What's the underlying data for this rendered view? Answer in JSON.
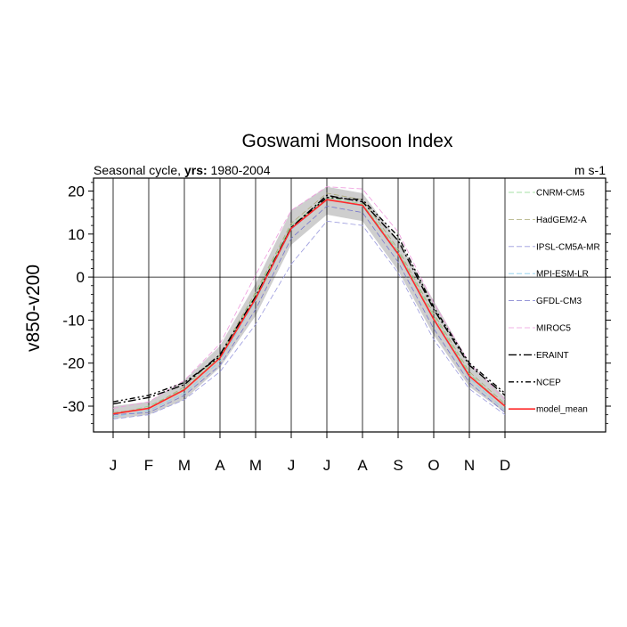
{
  "chart_data": {
    "type": "line",
    "title": "Goswami Monsoon Index",
    "subtitle_prefix": "Seasonal cycle, ",
    "subtitle_bold": "yrs:",
    "subtitle_years": " 1980-2004",
    "units": "m s-1",
    "ylabel": "v850-v200",
    "xlabel": "",
    "categories": [
      "J",
      "F",
      "M",
      "A",
      "M",
      "J",
      "J",
      "A",
      "S",
      "O",
      "N",
      "D"
    ],
    "ylim": [
      -36,
      23
    ],
    "yticks": [
      20,
      10,
      0,
      -10,
      -20,
      -30
    ],
    "ytick_labels": [
      "20",
      "10",
      "0",
      "-10",
      "-20",
      "-30"
    ],
    "grid": "vertical lines at each month",
    "legend_placement": "right inside plot",
    "shaded_band": {
      "lower": [
        -33.0,
        -32.0,
        -28.5,
        -21.0,
        -9.0,
        7.5,
        14.5,
        13.0,
        1.5,
        -13.5,
        -25.5,
        -31.5
      ],
      "upper": [
        -30.0,
        -29.0,
        -24.0,
        -16.0,
        -1.5,
        15.5,
        21.0,
        19.5,
        8.5,
        -5.5,
        -20.0,
        -28.0
      ]
    },
    "series": [
      {
        "name": "CNRM-CM5",
        "color": "#88d888",
        "dash": "6 3",
        "width": 0.8,
        "values": [
          -32.0,
          -30.0,
          -26.0,
          -18.5,
          -4.0,
          12.0,
          18.5,
          17.0,
          6.0,
          -9.0,
          -22.5,
          -30.0
        ]
      },
      {
        "name": "HadGEM2-A",
        "color": "#aaaa77",
        "dash": "6 3",
        "width": 0.8,
        "values": [
          -31.5,
          -30.5,
          -25.5,
          -18.0,
          -3.5,
          12.5,
          19.5,
          18.0,
          6.5,
          -8.5,
          -22.0,
          -29.5
        ]
      },
      {
        "name": "IPSL-CM5A-MR",
        "color": "#9999dd",
        "dash": "6 3",
        "width": 0.8,
        "values": [
          -33.0,
          -32.0,
          -28.5,
          -22.0,
          -11.0,
          3.0,
          13.0,
          12.0,
          1.0,
          -14.5,
          -26.0,
          -32.0
        ]
      },
      {
        "name": "MPI-ESM-LR",
        "color": "#88ccee",
        "dash": "6 3",
        "width": 0.8,
        "values": [
          -32.5,
          -31.0,
          -27.0,
          -19.5,
          -5.5,
          11.0,
          18.0,
          16.5,
          5.0,
          -10.0,
          -23.5,
          -31.0
        ]
      },
      {
        "name": "GFDL-CM3",
        "color": "#7777cc",
        "dash": "6 3",
        "width": 0.8,
        "values": [
          -32.0,
          -31.5,
          -27.5,
          -20.5,
          -7.5,
          9.0,
          16.5,
          15.0,
          3.5,
          -12.0,
          -24.5,
          -31.5
        ]
      },
      {
        "name": "MIROC5",
        "color": "#ee99dd",
        "dash": "6 3",
        "width": 0.8,
        "values": [
          -30.5,
          -29.0,
          -24.0,
          -15.5,
          0.5,
          15.5,
          21.0,
          20.5,
          10.5,
          -6.0,
          -20.0,
          -28.5
        ]
      },
      {
        "name": "ERAINT",
        "color": "#000000",
        "dash": "9 3 2 3",
        "width": 1.4,
        "values": [
          -29.5,
          -28.0,
          -25.0,
          -18.0,
          -4.5,
          11.5,
          19.0,
          17.5,
          8.5,
          -7.5,
          -20.5,
          -27.5
        ]
      },
      {
        "name": "NCEP",
        "color": "#000000",
        "dash": "6 3 2 3 2 3",
        "width": 1.4,
        "values": [
          -29.0,
          -27.5,
          -24.5,
          -18.5,
          -5.0,
          11.5,
          18.5,
          18.0,
          9.5,
          -7.0,
          -20.0,
          -27.0
        ]
      },
      {
        "name": "model_mean",
        "color": "#ff2a2a",
        "dash": "",
        "width": 1.6,
        "values": [
          -31.8,
          -30.5,
          -26.2,
          -18.8,
          -5.0,
          11.3,
          18.0,
          16.7,
          5.4,
          -9.8,
          -23.0,
          -30.0
        ]
      }
    ]
  }
}
